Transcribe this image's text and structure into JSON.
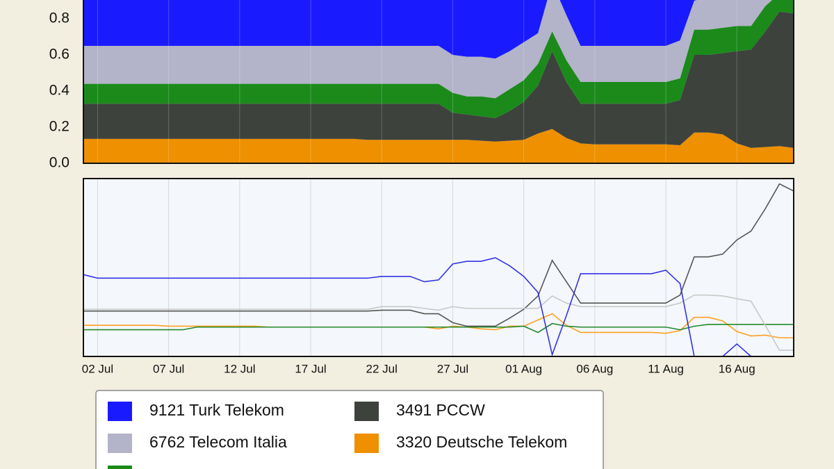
{
  "chart_data": [
    {
      "type": "stacked-area",
      "ylim": [
        0,
        1
      ],
      "yticks": [
        {
          "value": 0,
          "label": "0.0"
        },
        0.2,
        0.4,
        0.6,
        0.8
      ],
      "grid": true,
      "series": [
        {
          "name": "9121 Turk Telekom",
          "color": "#1a1aff",
          "values": [
            0.35,
            0.35,
            0.35,
            0.35,
            0.35,
            0.35,
            0.35,
            0.35,
            0.35,
            0.35,
            0.35,
            0.35,
            0.35,
            0.35,
            0.35,
            0.35,
            0.35,
            0.35,
            0.35,
            0.35,
            0.35,
            0.35,
            0.35,
            0.35,
            0.35,
            0.35,
            0.4,
            0.41,
            0.41,
            0.42,
            0.38,
            0.33,
            0.28,
            0,
            0.18,
            0.35,
            0.35,
            0.35,
            0.35,
            0.35,
            0.35,
            0.35,
            0.32,
            0.1,
            0.08,
            0.06,
            0.04,
            0.02,
            0,
            0,
            0
          ]
        },
        {
          "name": "6762 Telecom Italia",
          "color": "#b3b3c9",
          "values": [
            0.21,
            0.21,
            0.21,
            0.21,
            0.21,
            0.21,
            0.21,
            0.21,
            0.21,
            0.21,
            0.21,
            0.21,
            0.21,
            0.21,
            0.21,
            0.21,
            0.21,
            0.21,
            0.21,
            0.21,
            0.21,
            0.21,
            0.21,
            0.21,
            0.21,
            0.21,
            0.21,
            0.22,
            0.22,
            0.22,
            0.21,
            0.21,
            0.17,
            0.27,
            0.25,
            0.2,
            0.2,
            0.2,
            0.2,
            0.2,
            0.2,
            0.2,
            0.21,
            0.16,
            0.18,
            0.19,
            0.2,
            0.22,
            0.13,
            0.06,
            0.08
          ]
        },
        {
          "color": "#1b8a1b",
          "values": [
            0.11,
            0.11,
            0.11,
            0.11,
            0.11,
            0.11,
            0.11,
            0.11,
            0.11,
            0.11,
            0.11,
            0.11,
            0.11,
            0.11,
            0.11,
            0.11,
            0.11,
            0.11,
            0.11,
            0.11,
            0.11,
            0.11,
            0.11,
            0.11,
            0.11,
            0.11,
            0.11,
            0.1,
            0.11,
            0.11,
            0.12,
            0.12,
            0.12,
            0.11,
            0.12,
            0.12,
            0.12,
            0.12,
            0.12,
            0.12,
            0.12,
            0.12,
            0.12,
            0.14,
            0.14,
            0.14,
            0.14,
            0.13,
            0.14,
            0.1,
            0.09
          ]
        },
        {
          "name": "3491 PCCW",
          "color": "#3d423d",
          "values": [
            0.195,
            0.195,
            0.195,
            0.195,
            0.195,
            0.195,
            0.195,
            0.195,
            0.195,
            0.195,
            0.195,
            0.195,
            0.195,
            0.195,
            0.195,
            0.195,
            0.195,
            0.195,
            0.195,
            0.195,
            0.2,
            0.2,
            0.2,
            0.2,
            0.2,
            0.2,
            0.15,
            0.14,
            0.135,
            0.13,
            0.165,
            0.21,
            0.265,
            0.43,
            0.31,
            0.22,
            0.225,
            0.225,
            0.225,
            0.225,
            0.225,
            0.225,
            0.25,
            0.43,
            0.43,
            0.45,
            0.51,
            0.545,
            0.64,
            0.745,
            0.745
          ]
        },
        {
          "name": "3320 Deutsche Telekom",
          "color": "#ee9000",
          "values": [
            0.135,
            0.135,
            0.135,
            0.135,
            0.135,
            0.135,
            0.135,
            0.135,
            0.135,
            0.135,
            0.135,
            0.135,
            0.135,
            0.135,
            0.135,
            0.135,
            0.135,
            0.135,
            0.135,
            0.135,
            0.13,
            0.13,
            0.13,
            0.13,
            0.13,
            0.13,
            0.13,
            0.13,
            0.125,
            0.12,
            0.125,
            0.13,
            0.165,
            0.19,
            0.14,
            0.11,
            0.105,
            0.105,
            0.105,
            0.105,
            0.105,
            0.105,
            0.1,
            0.17,
            0.17,
            0.16,
            0.11,
            0.085,
            0.09,
            0.095,
            0.085
          ]
        }
      ]
    },
    {
      "type": "line",
      "ylim": [
        0,
        1
      ],
      "grid": true,
      "categories": [
        null,
        "02 Jul",
        null,
        null,
        null,
        null,
        "07 Jul",
        null,
        null,
        null,
        null,
        "12 Jul",
        null,
        null,
        null,
        null,
        "17 Jul",
        null,
        null,
        null,
        null,
        "22 Jul",
        null,
        null,
        null,
        null,
        "27 Jul",
        null,
        null,
        null,
        null,
        "01 Aug",
        null,
        null,
        null,
        null,
        "06 Aug",
        null,
        null,
        null,
        null,
        "11 Aug",
        null,
        null,
        null,
        null,
        "16 Aug",
        null,
        null,
        null,
        null
      ],
      "series": [
        {
          "color": "#3232e6",
          "values": [
            0.46,
            0.44,
            0.44,
            0.44,
            0.44,
            0.44,
            0.44,
            0.44,
            0.44,
            0.44,
            0.44,
            0.44,
            0.44,
            0.44,
            0.44,
            0.44,
            0.44,
            0.44,
            0.44,
            0.44,
            0.44,
            0.45,
            0.45,
            0.45,
            0.42,
            0.43,
            0.52,
            0.535,
            0.535,
            0.555,
            0.51,
            0.45,
            0.36,
            0.01,
            0.23,
            0.465,
            0.465,
            0.465,
            0.465,
            0.465,
            0.465,
            0.485,
            0.41,
            0,
            0,
            0,
            0.07,
            0,
            0,
            0,
            0
          ]
        },
        {
          "color": "#c8c8c8",
          "values": [
            0.265,
            0.265,
            0.265,
            0.265,
            0.265,
            0.265,
            0.265,
            0.265,
            0.265,
            0.265,
            0.265,
            0.265,
            0.265,
            0.265,
            0.265,
            0.265,
            0.265,
            0.265,
            0.265,
            0.265,
            0.265,
            0.28,
            0.28,
            0.28,
            0.27,
            0.26,
            0.28,
            0.27,
            0.27,
            0.27,
            0.27,
            0.27,
            0.27,
            0.34,
            0.3,
            0.28,
            0.28,
            0.28,
            0.28,
            0.28,
            0.28,
            0.28,
            0.3,
            0.345,
            0.345,
            0.34,
            0.325,
            0.31,
            0.175,
            0.035,
            0.035
          ]
        },
        {
          "color": "#22882a",
          "values": [
            0.15,
            0.15,
            0.15,
            0.15,
            0.15,
            0.15,
            0.15,
            0.15,
            0.165,
            0.165,
            0.165,
            0.165,
            0.165,
            0.165,
            0.165,
            0.165,
            0.165,
            0.165,
            0.165,
            0.165,
            0.165,
            0.165,
            0.165,
            0.165,
            0.165,
            0.165,
            0.165,
            0.165,
            0.165,
            0.165,
            0.165,
            0.17,
            0.135,
            0.185,
            0.17,
            0.165,
            0.165,
            0.165,
            0.165,
            0.165,
            0.165,
            0.165,
            0.15,
            0.17,
            0.18,
            0.18,
            0.18,
            0.18,
            0.18,
            0.18,
            0.18
          ]
        },
        {
          "color": "#555555",
          "values": [
            0.255,
            0.255,
            0.255,
            0.255,
            0.255,
            0.255,
            0.255,
            0.255,
            0.255,
            0.255,
            0.255,
            0.255,
            0.255,
            0.255,
            0.255,
            0.255,
            0.255,
            0.255,
            0.255,
            0.255,
            0.255,
            0.26,
            0.26,
            0.26,
            0.24,
            0.24,
            0.19,
            0.17,
            0.17,
            0.17,
            0.215,
            0.265,
            0.34,
            0.54,
            0.42,
            0.3,
            0.3,
            0.3,
            0.3,
            0.3,
            0.3,
            0.3,
            0.345,
            0.56,
            0.56,
            0.575,
            0.655,
            0.705,
            0.83,
            0.97,
            0.93
          ]
        },
        {
          "color": "#ffa020",
          "values": [
            0.175,
            0.175,
            0.175,
            0.175,
            0.175,
            0.175,
            0.17,
            0.17,
            0.17,
            0.17,
            0.17,
            0.17,
            0.17,
            0.165,
            0.165,
            0.165,
            0.165,
            0.165,
            0.165,
            0.165,
            0.165,
            0.165,
            0.165,
            0.165,
            0.165,
            0.155,
            0.17,
            0.165,
            0.155,
            0.15,
            0.17,
            0.17,
            0.205,
            0.24,
            0.175,
            0.135,
            0.135,
            0.135,
            0.135,
            0.135,
            0.135,
            0.13,
            0.145,
            0.22,
            0.22,
            0.2,
            0.14,
            0.115,
            0.12,
            0.105,
            0.105
          ]
        }
      ]
    }
  ]
}
